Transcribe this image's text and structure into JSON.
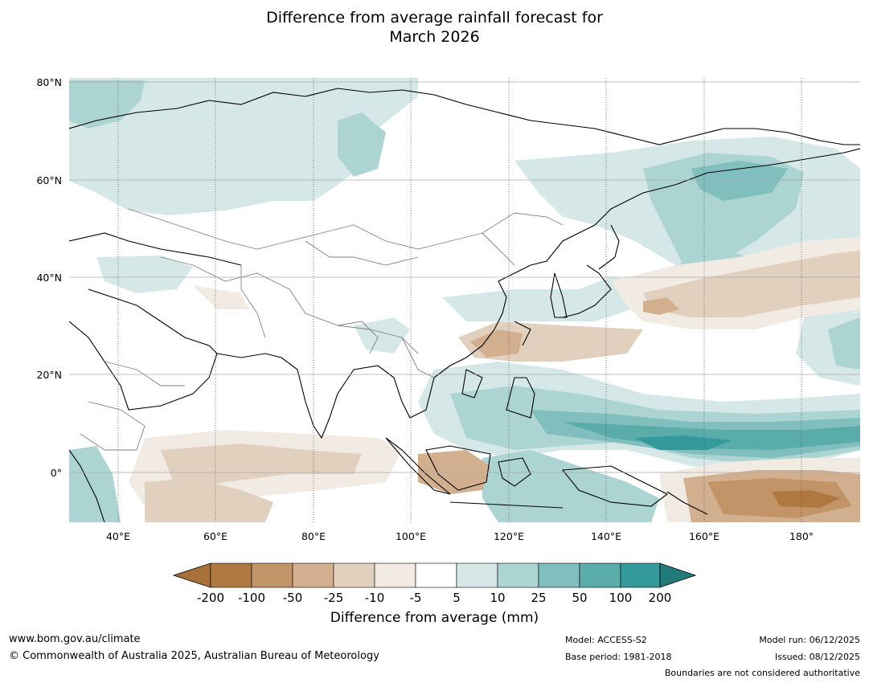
{
  "title": {
    "line1": "Difference from average rainfall forecast for",
    "line2": "March 2026"
  },
  "map": {
    "latitude_labels": [
      "80°N",
      "60°N",
      "40°N",
      "20°N",
      "0°"
    ],
    "longitude_labels": [
      "40°E",
      "60°E",
      "80°E",
      "100°E",
      "120°E",
      "140°E",
      "160°E",
      "180°"
    ],
    "extent": {
      "lon_min": 30,
      "lon_max": 192,
      "lat_min": -10,
      "lat_max": 81
    },
    "units": "mm"
  },
  "legend": {
    "title": "Difference from average (mm)",
    "tick_labels": [
      "-200",
      "-100",
      "-50",
      "-25",
      "-10",
      "-5",
      "5",
      "10",
      "25",
      "50",
      "100",
      "200"
    ],
    "colors": [
      "#a8703a",
      "#af7840",
      "#c39467",
      "#d2b08f",
      "#e2d0bf",
      "#f1ebe4",
      "#ffffff",
      "#d5e8e7",
      "#abd4d3",
      "#80bfbd",
      "#5aacaa",
      "#33999a",
      "#237a7a"
    ]
  },
  "footer": {
    "website": "www.bom.gov.au/climate",
    "copyright": "© Commonwealth of Australia 2025, Australian Bureau of Meteorology",
    "model": "Model: ACCESS-S2",
    "base_period": "Base period: 1981-2018",
    "model_run": "Model run: 06/12/2025",
    "issued": "Issued: 08/12/2025",
    "disclaimer": "Boundaries are not considered authoritative"
  }
}
